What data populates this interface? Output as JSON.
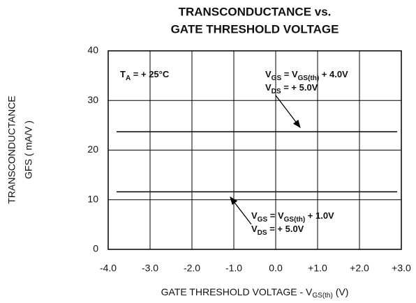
{
  "chart_data": {
    "type": "line",
    "title": [
      "TRANSCONDUCTANCE vs.",
      "GATE THRESHOLD VOLTAGE"
    ],
    "y_label": [
      "TRANSCONDUCTANCE",
      "GFS ( mA/V )"
    ],
    "x_label": [
      "GATE THRESHOLD VOLTAGE - V",
      "GS(th)",
      " (V)"
    ],
    "xlim": [
      -4,
      3
    ],
    "ylim": [
      0,
      40
    ],
    "xticks": [
      {
        "value": -4,
        "label": "-4.0"
      },
      {
        "value": -3,
        "label": "-3.0"
      },
      {
        "value": -2,
        "label": "-2.0"
      },
      {
        "value": -1,
        "label": "-1.0"
      },
      {
        "value": 0,
        "label": "0.0"
      },
      {
        "value": 1,
        "label": "+1.0"
      },
      {
        "value": 2,
        "label": "+2.0"
      },
      {
        "value": 3,
        "label": "+3.0"
      }
    ],
    "yticks": [
      0,
      10,
      20,
      30,
      40
    ],
    "grid": true,
    "series": [
      {
        "color": "#000000",
        "x": [
          -3.8,
          2.9
        ],
        "values": [
          23.7,
          23.7
        ]
      },
      {
        "color": "#000000",
        "x": [
          -3.8,
          2.9
        ],
        "values": [
          11.6,
          11.6
        ]
      }
    ],
    "annotations": [
      [
        "T",
        "A",
        " = + 25°C"
      ],
      [
        "V",
        "GS",
        " = V",
        "GS(th)",
        " + 4.0V"
      ],
      [
        "V",
        "DS",
        " = + 5.0V"
      ],
      [
        "V",
        "GS",
        " = V",
        "GS(th)",
        " + 1.0V"
      ],
      [
        "V",
        "DS",
        " = + 5.0V"
      ]
    ]
  }
}
